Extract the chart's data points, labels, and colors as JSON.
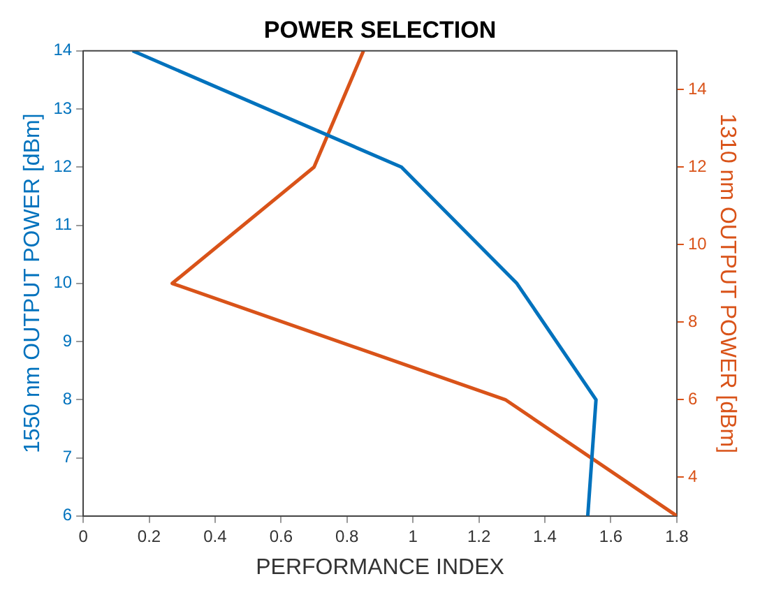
{
  "chart_data": {
    "type": "line",
    "title": "POWER SELECTION",
    "xlabel": "PERFORMANCE INDEX",
    "ylabel": "1550 nm OUTPUT POWER [dBm]",
    "y2label": "1310 nm OUTPUT POWER [dBm]",
    "xlim": [
      0,
      1.8
    ],
    "xticks": [
      0,
      0.2,
      0.4,
      0.6,
      0.8,
      1,
      1.2,
      1.4,
      1.6,
      1.8
    ],
    "ylim": [
      6,
      14
    ],
    "yticks": [
      6,
      7,
      8,
      9,
      10,
      11,
      12,
      13,
      14
    ],
    "y2lim": [
      3,
      15
    ],
    "y2ticks": [
      4,
      6,
      8,
      10,
      12,
      14
    ],
    "grid": false,
    "legend": false,
    "series": [
      {
        "color": "#0072bd",
        "x": [
          1.53,
          1.555,
          1.315,
          0.965,
          0.15
        ],
        "values": [
          6,
          8,
          10,
          12,
          14
        ]
      },
      {
        "color": "#d95319",
        "axis": "y2",
        "x": [
          1.8,
          1.28,
          0.27,
          0.7,
          0.85
        ],
        "values": [
          3,
          6,
          9,
          12,
          15
        ]
      }
    ]
  }
}
